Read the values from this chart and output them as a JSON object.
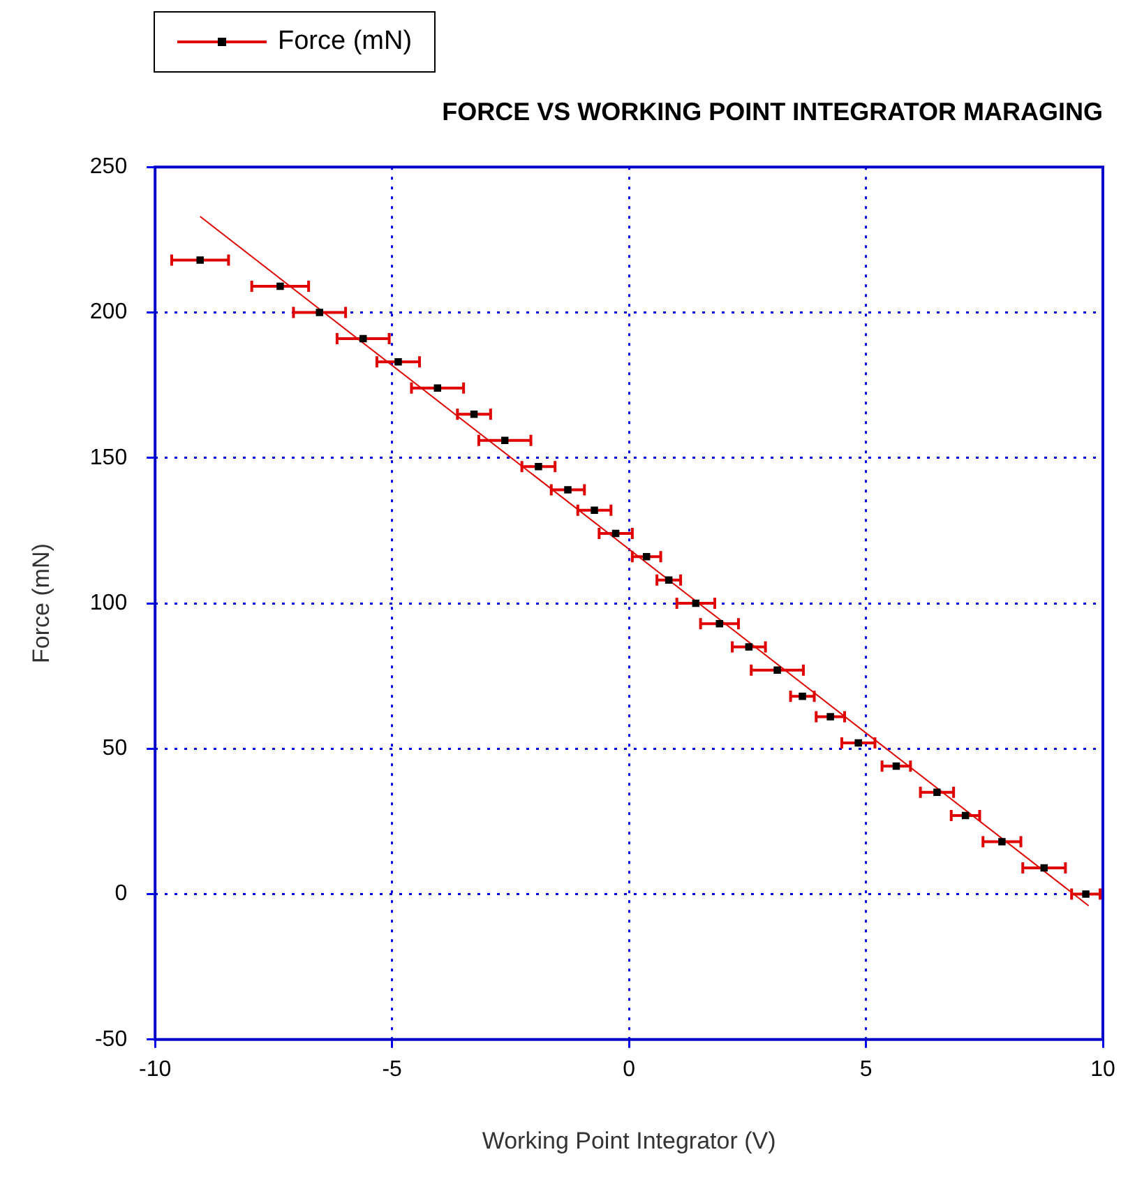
{
  "chart_data": {
    "type": "scatter",
    "title": "FORCE VS WORKING POINT INTEGRATOR MARAGING",
    "xlabel": "Working Point Integrator (V)",
    "ylabel": "Force (mN)",
    "xlim": [
      -10,
      10
    ],
    "xticks": [
      -10,
      -5,
      0,
      5,
      10
    ],
    "ylim": [
      -50,
      250
    ],
    "yticks": [
      -50,
      0,
      50,
      100,
      150,
      200,
      250
    ],
    "grid": true,
    "legend": "top left",
    "series": [
      {
        "name": "Force (mN)",
        "type": "scatter",
        "color": "#000000",
        "marker": "square",
        "x": [
          -9.05,
          -7.36,
          -6.53,
          -5.61,
          -4.87,
          -4.04,
          -3.27,
          -2.62,
          -1.91,
          -1.29,
          -0.73,
          -0.28,
          0.37,
          0.84,
          1.41,
          1.91,
          2.53,
          3.13,
          3.66,
          4.25,
          4.84,
          5.64,
          6.5,
          7.1,
          7.87,
          8.76,
          9.64
        ],
        "values": [
          218,
          209,
          200,
          191,
          183,
          174,
          165,
          156,
          147,
          139,
          132,
          124,
          116,
          108,
          100,
          93,
          85,
          77,
          68,
          61,
          52,
          44,
          35,
          27,
          18,
          9,
          0
        ],
        "xerrors": [
          0.6,
          0.6,
          0.55,
          0.55,
          0.45,
          0.55,
          0.35,
          0.55,
          0.35,
          0.35,
          0.35,
          0.35,
          0.3,
          0.25,
          0.4,
          0.4,
          0.35,
          0.55,
          0.25,
          0.3,
          0.35,
          0.3,
          0.35,
          0.3,
          0.4,
          0.45,
          0.3
        ]
      },
      {
        "type": "line",
        "color": "#e00000",
        "marker": "none",
        "x": [
          -9.05,
          9.7
        ],
        "values": [
          233,
          -4
        ]
      }
    ]
  }
}
